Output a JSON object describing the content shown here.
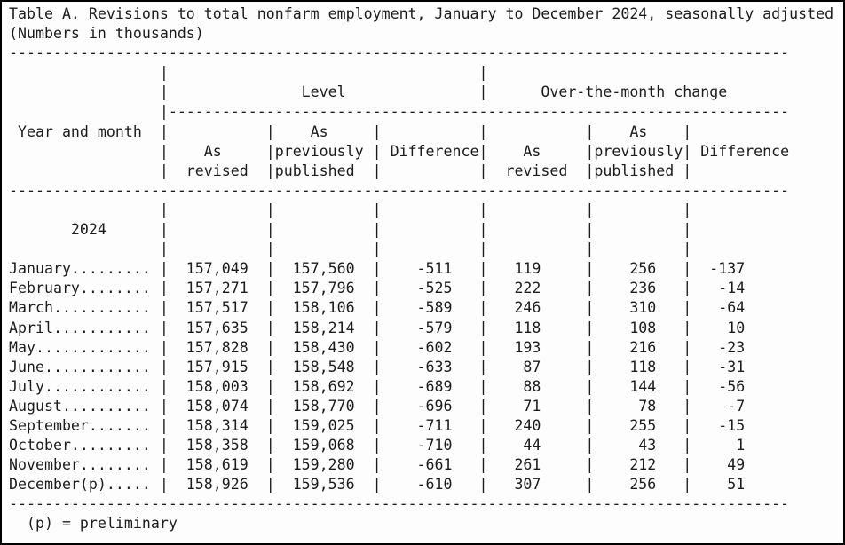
{
  "title": "Table A. Revisions to total nonfarm employment, January to December 2024, seasonally adjusted",
  "subtitle": "(Numbers in thousands)",
  "header": {
    "row_label": "Year and month",
    "group_level": "Level",
    "group_change": "Over-the-month change",
    "col_as": "As",
    "col_revised": "revised",
    "col_previously": "previously",
    "col_published": "published",
    "col_difference": "Difference"
  },
  "year_label": "2024",
  "columns": [
    "As revised",
    "As previously published",
    "Difference",
    "As revised",
    "As previously published",
    "Difference"
  ],
  "rows": [
    {
      "month": "January",
      "values": [
        "157,049",
        "157,560",
        "-511",
        "119",
        "256",
        "-137"
      ]
    },
    {
      "month": "February",
      "values": [
        "157,271",
        "157,796",
        "-525",
        "222",
        "236",
        "-14"
      ]
    },
    {
      "month": "March",
      "values": [
        "157,517",
        "158,106",
        "-589",
        "246",
        "310",
        "-64"
      ]
    },
    {
      "month": "April",
      "values": [
        "157,635",
        "158,214",
        "-579",
        "118",
        "108",
        "10"
      ]
    },
    {
      "month": "May",
      "values": [
        "157,828",
        "158,430",
        "-602",
        "193",
        "216",
        "-23"
      ]
    },
    {
      "month": "June",
      "values": [
        "157,915",
        "158,548",
        "-633",
        "87",
        "118",
        "-31"
      ]
    },
    {
      "month": "July",
      "values": [
        "158,003",
        "158,692",
        "-689",
        "88",
        "144",
        "-56"
      ]
    },
    {
      "month": "August",
      "values": [
        "158,074",
        "158,770",
        "-696",
        "71",
        "78",
        "-7"
      ]
    },
    {
      "month": "September",
      "values": [
        "158,314",
        "159,025",
        "-711",
        "240",
        "255",
        "-15"
      ]
    },
    {
      "month": "October",
      "values": [
        "158,358",
        "159,068",
        "-710",
        "44",
        "43",
        "1"
      ]
    },
    {
      "month": "November",
      "values": [
        "158,619",
        "159,280",
        "-661",
        "261",
        "212",
        "49"
      ]
    },
    {
      "month": "December(p)",
      "values": [
        "158,926",
        "159,536",
        "-610",
        "307",
        "256",
        "51"
      ]
    }
  ],
  "footnote": "(p) = preliminary"
}
